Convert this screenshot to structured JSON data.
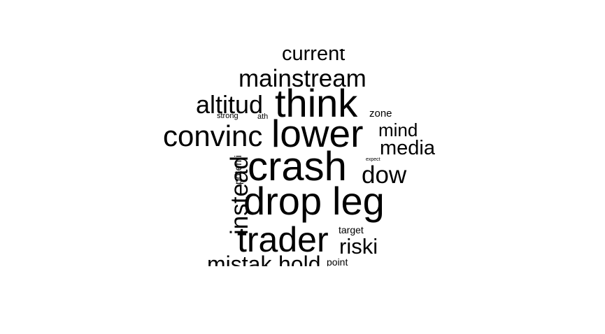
{
  "words": [
    {
      "id": "current",
      "text": "current"
    },
    {
      "id": "mainstream",
      "text": "mainstream"
    },
    {
      "id": "think",
      "text": "think"
    },
    {
      "id": "altitud",
      "text": "altitud"
    },
    {
      "id": "strong",
      "text": "strong"
    },
    {
      "id": "ath",
      "text": "ath"
    },
    {
      "id": "zone",
      "text": "zone"
    },
    {
      "id": "convinc",
      "text": "convinc"
    },
    {
      "id": "lower",
      "text": "lower"
    },
    {
      "id": "mind",
      "text": "mind"
    },
    {
      "id": "media",
      "text": "media"
    },
    {
      "id": "instead",
      "text": "instead"
    },
    {
      "id": "potenti",
      "text": "potenti"
    },
    {
      "id": "crash",
      "text": "crash"
    },
    {
      "id": "expect",
      "text": "expect"
    },
    {
      "id": "dow",
      "text": "dow"
    },
    {
      "id": "drop",
      "text": "drop"
    },
    {
      "id": "leg",
      "text": "leg"
    },
    {
      "id": "target",
      "text": "target"
    },
    {
      "id": "trader",
      "text": "trader"
    },
    {
      "id": "riski",
      "text": "riski"
    },
    {
      "id": "mistak",
      "text": "mistak"
    },
    {
      "id": "hold",
      "text": "hold"
    },
    {
      "id": "point",
      "text": "point"
    }
  ]
}
